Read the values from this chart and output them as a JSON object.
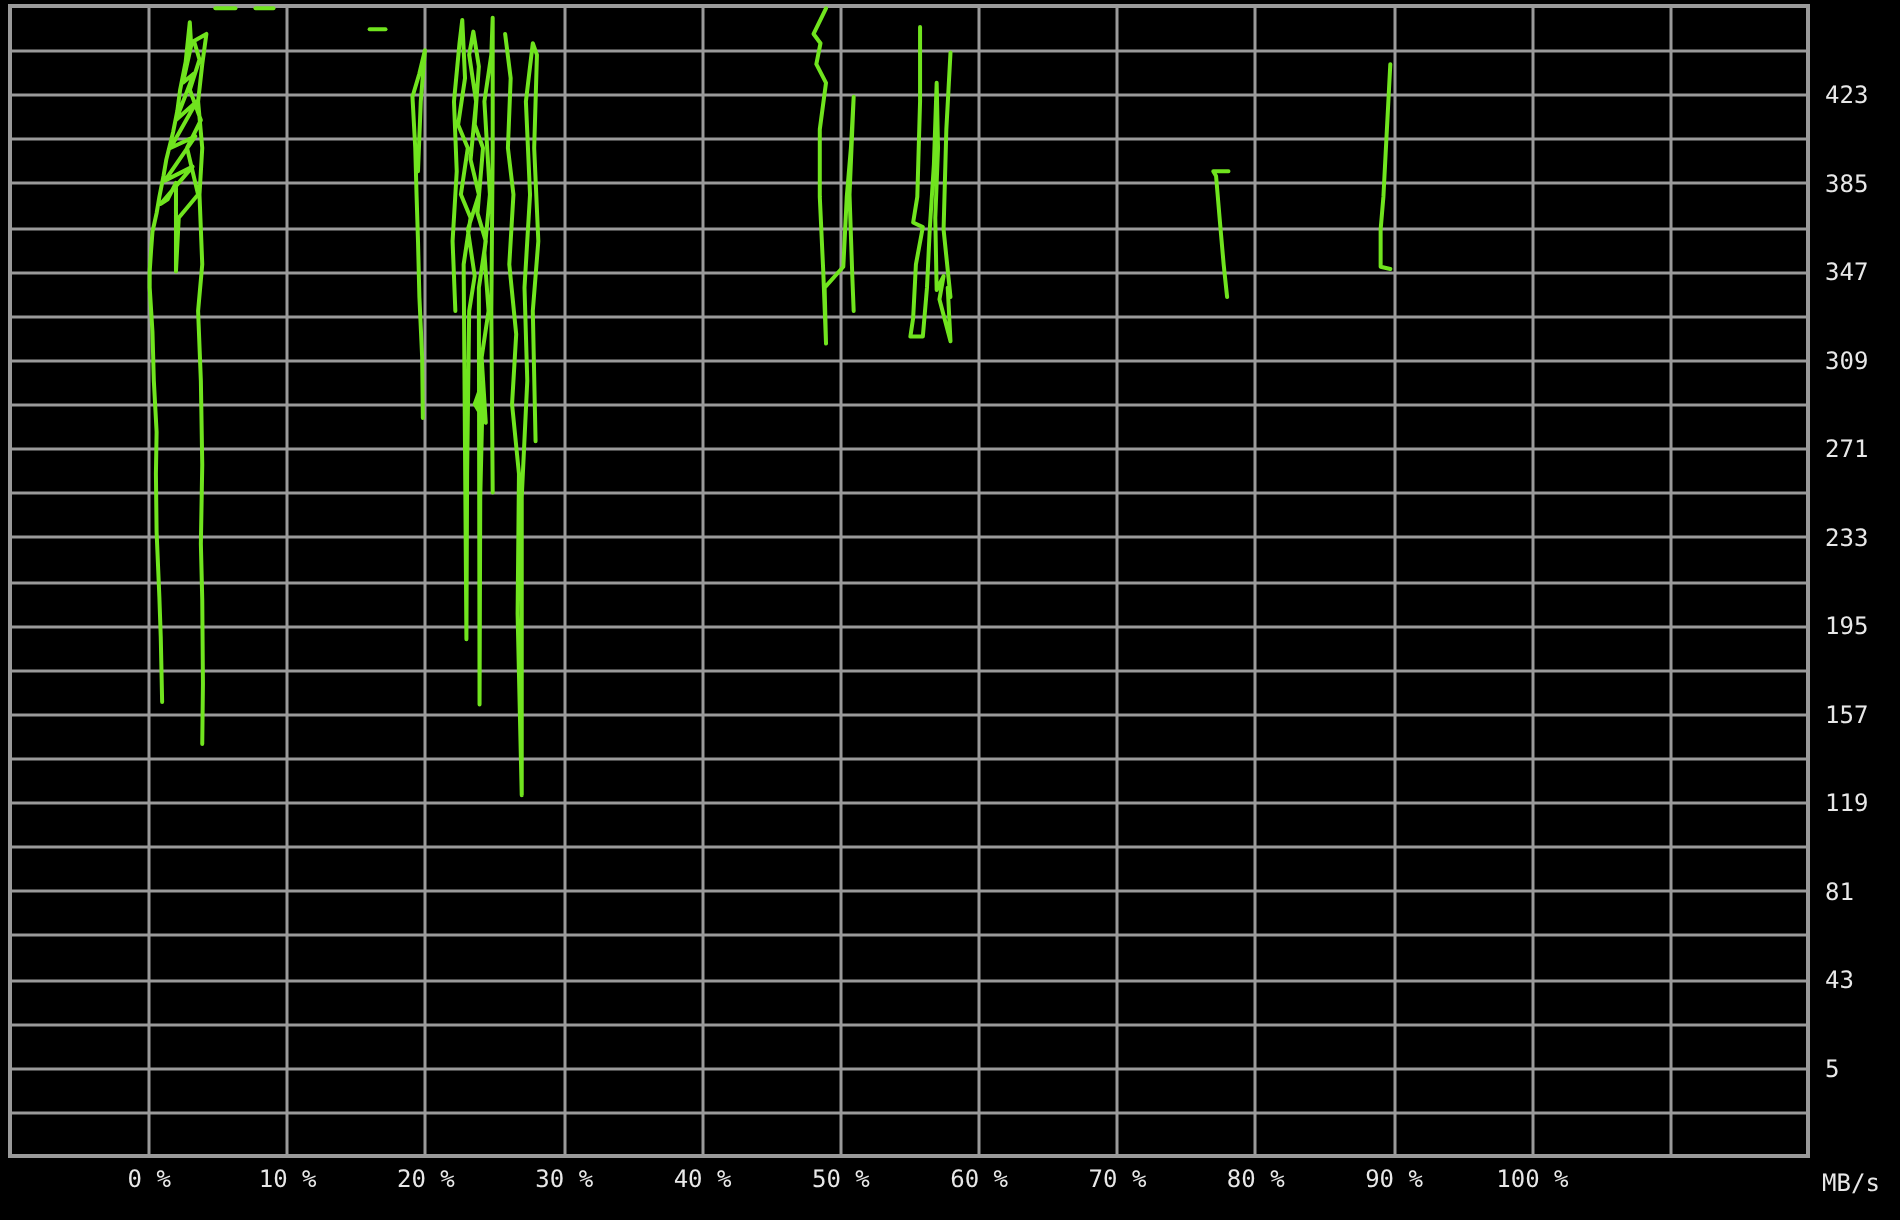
{
  "chart_data": {
    "type": "line",
    "ylabel": "MB/s",
    "grid": true,
    "xlim": [
      -10,
      120
    ],
    "xticks": [
      {
        "value": 0,
        "label": "0 %"
      },
      {
        "value": 10,
        "label": "10 %"
      },
      {
        "value": 20,
        "label": "20 %"
      },
      {
        "value": 30,
        "label": "30 %"
      },
      {
        "value": 40,
        "label": "40 %"
      },
      {
        "value": 50,
        "label": "50 %"
      },
      {
        "value": 60,
        "label": "60 %"
      },
      {
        "value": 70,
        "label": "70 %"
      },
      {
        "value": 80,
        "label": "80 %"
      },
      {
        "value": 90,
        "label": "90 %"
      },
      {
        "value": 100,
        "label": "100 %"
      },
      {
        "value": 110,
        "label": null
      }
    ],
    "ylim": [
      -33,
      461
    ],
    "yticks": [
      {
        "value": -14,
        "label": null
      },
      5,
      {
        "value": 24,
        "label": null
      },
      43,
      {
        "value": 62,
        "label": null
      },
      81,
      {
        "value": 100,
        "label": null
      },
      119,
      {
        "value": 138,
        "label": null
      },
      157,
      {
        "value": 176,
        "label": null
      },
      195,
      {
        "value": 214,
        "label": null
      },
      233,
      {
        "value": 252,
        "label": null
      },
      271,
      {
        "value": 290,
        "label": null
      },
      309,
      {
        "value": 328,
        "label": null
      },
      347,
      {
        "value": 366,
        "label": null
      },
      385,
      {
        "value": 404,
        "label": null
      },
      423,
      {
        "value": 442,
        "label": null
      }
    ],
    "series": [
      {
        "color": "#70e41e",
        "x": [
          1.0,
          0.9,
          0.8,
          0.6,
          0.55,
          0.6,
          0.4,
          0.3,
          0.1,
          0.1,
          0.2,
          0.3,
          0.6,
          0.8,
          1.1,
          1.3,
          1.8,
          2.1,
          2.3,
          2.7,
          3.0,
          3.1,
          2.5,
          3.3,
          2.0,
          3.5,
          1.6,
          3.4,
          1.2,
          3.2,
          0.9,
          1.4,
          2.0,
          2.0,
          2.2,
          3.6,
          2.8,
          3.8,
          3.0,
          3.7,
          3.3,
          4.2,
          3.9,
          3.6,
          3.9,
          3.7,
          3.9,
          3.6,
          3.8,
          3.9,
          3.8,
          3.9,
          3.95,
          3.9
        ],
        "values": [
          162,
          190,
          207,
          235,
          260,
          278,
          300,
          321,
          340,
          347,
          356,
          364,
          372,
          379,
          388,
          395,
          407,
          416,
          425,
          437,
          454,
          444,
          428,
          432,
          412,
          420,
          400,
          405,
          386,
          392,
          376,
          378,
          385,
          347,
          370,
          380,
          400,
          412,
          425,
          438,
          446,
          449,
          436,
          420,
          400,
          380,
          350,
          330,
          300,
          264,
          230,
          206,
          170,
          144
        ]
      },
      {
        "color": "#70e41e",
        "x": [
          4.85,
          6.3
        ],
        "values": [
          460,
          460
        ]
      },
      {
        "color": "#70e41e",
        "x": [
          7.75,
          9.05
        ],
        "values": [
          460,
          460
        ]
      },
      {
        "color": "#70e41e",
        "x": [
          16.0,
          17.15
        ],
        "values": [
          451,
          451
        ]
      },
      {
        "color": "#70e41e",
        "x": [
          19.85,
          19.8,
          19.6,
          19.5,
          19.4,
          19.3,
          19.1,
          19.6,
          20.0,
          19.7,
          19.5
        ],
        "values": [
          284,
          310,
          336,
          360,
          379,
          400,
          422,
          432,
          442,
          420,
          390
        ]
      },
      {
        "color": "#70e41e",
        "x": [
          22.2,
          22.0,
          22.3,
          22.1,
          22.5,
          22.7,
          22.9,
          22.4,
          23.1,
          22.6,
          23.3,
          22.8,
          23.0,
          23.05,
          23.2,
          23.6,
          23.1,
          23.9,
          23.3,
          23.7,
          23.2,
          23.5,
          23.9,
          23.6,
          24.2,
          23.8,
          24.4,
          23.9,
          23.95,
          24.0,
          24.2,
          23.6,
          24.4,
          24.1,
          24.6,
          24.3,
          24.7,
          24.3,
          24.8,
          24.9,
          24.9,
          24.8,
          24.85,
          24.9
        ],
        "values": [
          330,
          360,
          390,
          420,
          445,
          455,
          430,
          410,
          400,
          380,
          370,
          350,
          189,
          260,
          330,
          345,
          365,
          380,
          395,
          420,
          440,
          450,
          435,
          410,
          400,
          372,
          360,
          340,
          161,
          250,
          300,
          290,
          282,
          310,
          330,
          355,
          380,
          420,
          440,
          456,
          400,
          330,
          290,
          252
        ]
      },
      {
        "color": "#70e41e",
        "x": [
          25.8,
          26.2,
          26.0,
          26.4,
          26.1,
          26.6,
          26.3,
          26.8,
          26.7,
          27.0,
          27.0,
          27.4,
          27.2,
          27.6,
          27.3,
          27.8,
          28.1,
          27.9,
          28.2,
          27.8,
          28.0
        ],
        "values": [
          449,
          430,
          400,
          380,
          350,
          320,
          290,
          260,
          200,
          122,
          250,
          300,
          340,
          380,
          420,
          445,
          440,
          400,
          360,
          330,
          274
        ]
      },
      {
        "color": "#70e41e",
        "x": [
          49.0,
          48.1,
          48.6,
          48.3,
          49.0,
          48.55,
          48.55,
          48.8,
          49.0,
          48.9,
          50.25,
          50.5,
          50.8,
          51.0,
          50.7,
          50.9,
          51.0
        ],
        "values": [
          460,
          449,
          445,
          436,
          428,
          408,
          379,
          347,
          316,
          340,
          349,
          379,
          400,
          422,
          380,
          345,
          330
        ]
      },
      {
        "color": "#70e41e",
        "x": [
          55.8,
          55.8,
          55.6,
          55.3,
          56.0,
          55.5,
          55.3,
          55.1,
          56.0,
          56.3,
          56.5,
          56.8,
          57.0,
          57.1,
          56.9,
          57.0,
          57.5,
          57.2,
          58.0,
          57.8,
          58.0,
          57.5,
          57.7,
          58.0
        ],
        "values": [
          452,
          420,
          379,
          368,
          366,
          350,
          327,
          319,
          319,
          340,
          365,
          393,
          428,
          400,
          370,
          339,
          345,
          335,
          317,
          340,
          336,
          365,
          408,
          441
        ]
      },
      {
        "color": "#70e41e",
        "x": [
          78.1,
          77.0,
          77.2,
          77.5,
          77.75,
          78.0
        ],
        "values": [
          390,
          390,
          388,
          367,
          350,
          336
        ]
      },
      {
        "color": "#70e41e",
        "x": [
          89.8,
          89.65,
          89.5,
          89.3,
          89.1,
          89.1,
          89.8
        ],
        "values": [
          436,
          419,
          402,
          379,
          365,
          349,
          348
        ]
      }
    ]
  }
}
